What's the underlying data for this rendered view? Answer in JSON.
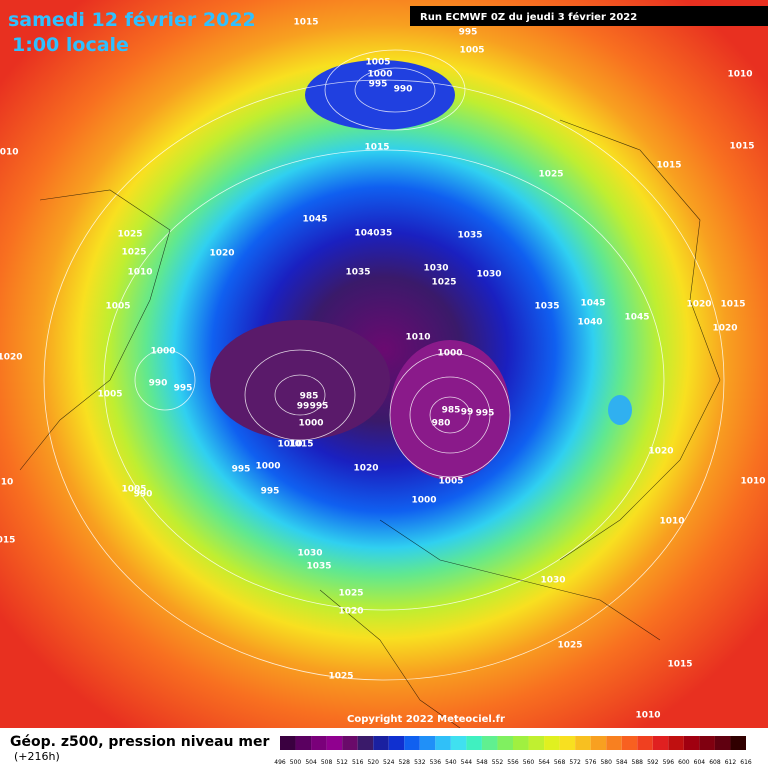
{
  "header": {
    "date": "samedi 12 février 2022",
    "time": "1:00 locale",
    "run": "Run ECMWF 0Z du jeudi 3 février 2022"
  },
  "map": {
    "isobar_labels": [
      "1015",
      "995",
      "1005",
      "1005",
      "1000",
      "995",
      "990",
      "1010",
      "1015",
      "1015",
      "1010",
      "1015",
      "1025",
      "1045",
      "1040",
      "35",
      "1035",
      "1025",
      "1020",
      "1025",
      "1030",
      "1030",
      "1010",
      "1035",
      "1025",
      "1005",
      "1035",
      "1045",
      "1020",
      "1015",
      "1040",
      "1045",
      "1020",
      "1010",
      "1020",
      "1000",
      "1000",
      "990",
      "995",
      "985",
      "99",
      "995",
      "985",
      "99",
      "995",
      "1005",
      "980",
      "1000",
      "1010",
      "1015",
      "1020",
      "995",
      "1000",
      "1020",
      "1010",
      "10",
      "1005",
      "1005",
      "990",
      "995",
      "1000",
      "1010",
      "015",
      "1030",
      "1035",
      "1030",
      "1025",
      "1020",
      "1025",
      "1015",
      "1025",
      "1010"
    ]
  },
  "footer": {
    "copyright": "Copyright 2022 Meteociel.fr",
    "legend_title": "Géop. z500, pression niveau mer",
    "forecast_hour": "(+216h)",
    "scale_labels": [
      "496",
      "500",
      "504",
      "508",
      "512",
      "516",
      "520",
      "524",
      "528",
      "532",
      "536",
      "540",
      "544",
      "548",
      "552",
      "556",
      "560",
      "564",
      "568",
      "572",
      "576",
      "580",
      "584",
      "588",
      "592",
      "596",
      "600",
      "604",
      "608",
      "612",
      "616"
    ]
  }
}
